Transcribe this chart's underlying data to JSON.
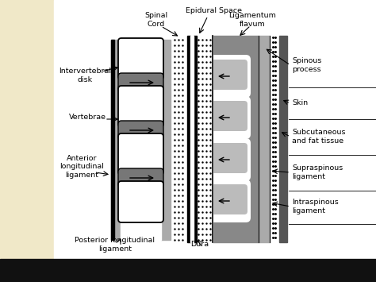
{
  "bg_color": "#ffffff",
  "left_bg_color": "#f0e8c8",
  "bottom_bar_color": "#111111",
  "gray_strip": "#aaaaaa",
  "disk_color": "#777777",
  "dark_gray": "#555555",
  "lig_gray": "#888888",
  "spinous_gray": "#bbbbbb",
  "skin_color": "#444444",
  "black": "#111111",
  "white": "#ffffff",
  "labels": {
    "epidural_space": "Epidural Space",
    "spinal_cord": "Spinal\nCord",
    "ligamentum_flavum": "Ligamentum\nflavum",
    "intervertebral_disk": "Intervertebral\ndisk",
    "vertebrae": "Vertebrae",
    "anterior_long": "Anterior\nlongitudinal\nligament",
    "posterior_long": "Posterior longitudinal\nligament",
    "dura": "Dura",
    "spinous_process": "Spinous\nprocess",
    "skin": "Skin",
    "subcutaneous": "Subcutaneous\nand fat tissue",
    "supraspinous": "Supraspinous\nligament",
    "intraspinous": "Intraspinous\nligament"
  }
}
